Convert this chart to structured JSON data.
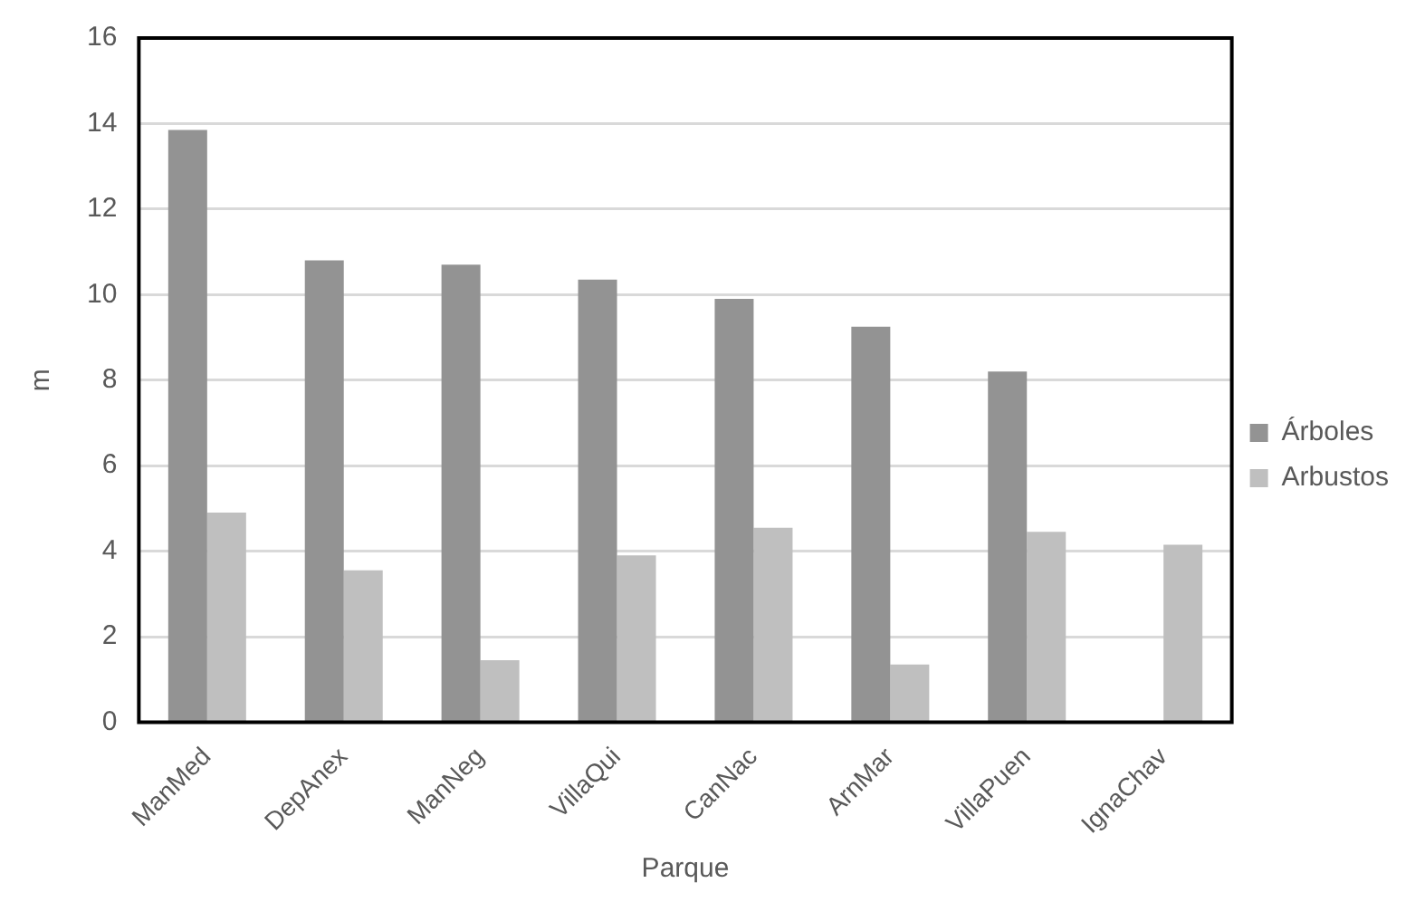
{
  "chart_data": {
    "type": "bar",
    "xlabel": "Parque",
    "ylabel": "m",
    "categories": [
      "ManMed",
      "DepAnex",
      "ManNeg",
      "VillaQui",
      "CanNac",
      "ArnMar",
      "VillaPuen",
      "IgnaChav"
    ],
    "series": [
      {
        "name": "Árboles",
        "color": "#939393",
        "values": [
          13.85,
          10.8,
          10.7,
          10.35,
          9.9,
          9.25,
          8.2,
          0
        ]
      },
      {
        "name": "Arbustos",
        "color": "#bfbfbf",
        "values": [
          4.9,
          3.55,
          1.45,
          3.9,
          4.55,
          1.35,
          4.45,
          4.15
        ]
      }
    ],
    "ylim": [
      0,
      16
    ],
    "yticks": [
      0,
      2,
      4,
      6,
      8,
      10,
      12,
      14,
      16
    ],
    "grid": "y",
    "legend": "right"
  }
}
